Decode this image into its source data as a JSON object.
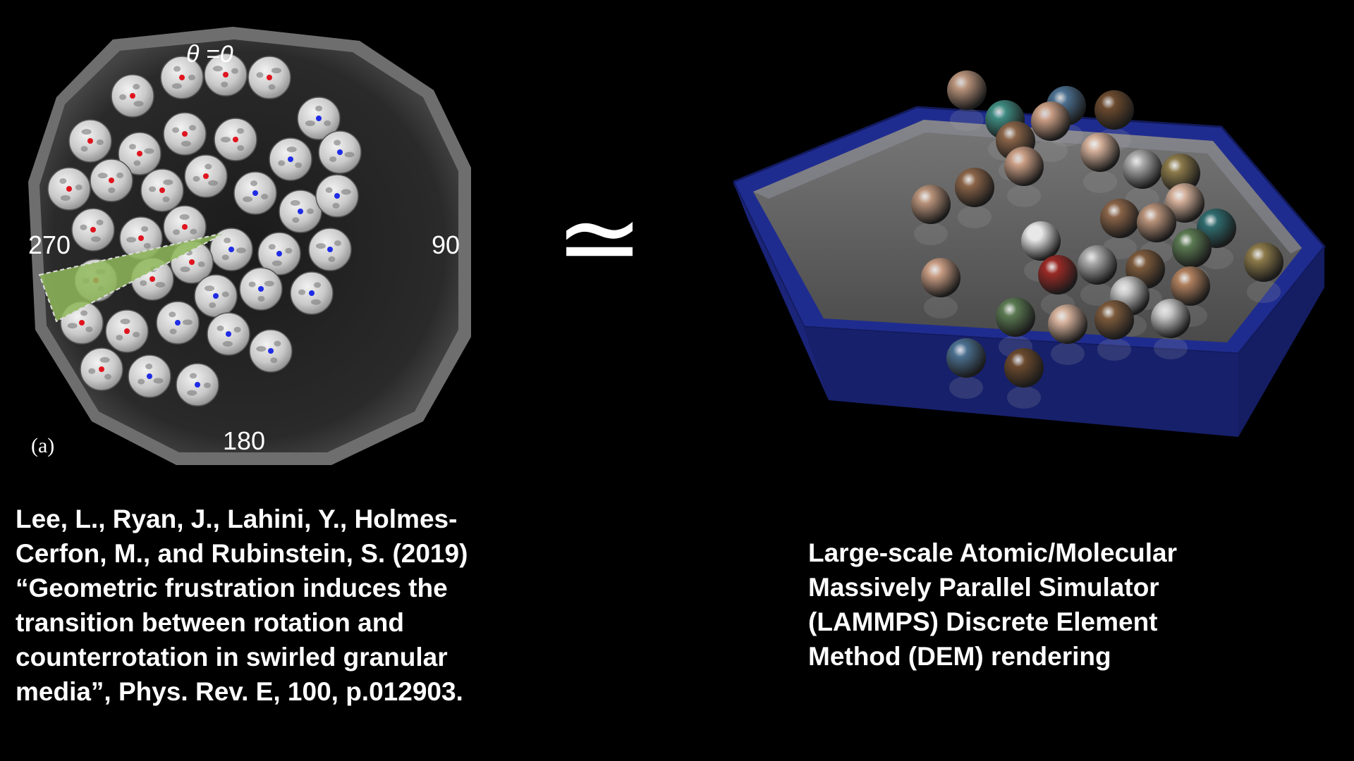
{
  "left_figure": {
    "theta_label": "θ =0",
    "angle_labels": {
      "left": "270",
      "right": "90",
      "bottom": "180"
    },
    "panel_tag": "(a)",
    "colors": {
      "dot_red": "#e0141e",
      "dot_blue": "#1e2ce6",
      "wedge": "#8fb85a"
    }
  },
  "approx_symbol": "≃",
  "caption_left": {
    "lines": [
      "Lee, L., Ryan, J., Lahini, Y., Holmes-",
      "Cerfon, M., and Rubinstein, S. (2019)",
      "“Geometric frustration induces the",
      "transition between rotation and",
      "counterrotation in swirled granular",
      "media”, Phys. Rev. E, 100, p.012903."
    ]
  },
  "caption_right": {
    "lines": [
      "Large-scale Atomic/Molecular",
      "Massively Parallel Simulator",
      "(LAMMPS) Discrete Element",
      "Method (DEM) rendering"
    ]
  },
  "right_figure": {
    "colors": {
      "tray_frame": "#1d2a8a",
      "tray_floor": "#5a5a5a"
    }
  }
}
